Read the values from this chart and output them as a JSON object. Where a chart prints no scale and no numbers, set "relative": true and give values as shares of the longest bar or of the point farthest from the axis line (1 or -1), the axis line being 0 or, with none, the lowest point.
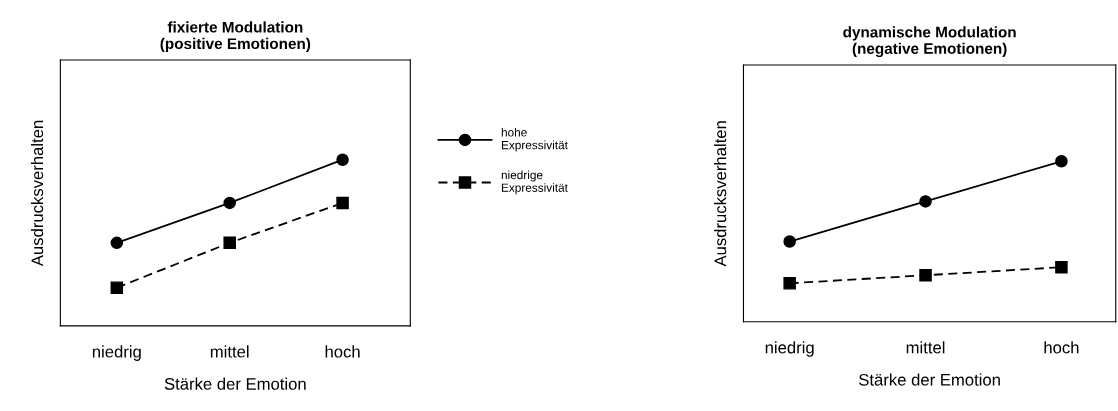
{
  "chart_data": [
    {
      "type": "line",
      "title": "fixierte Modulation\n(positive Emotionen)",
      "xlabel": "Stärke der Emotion",
      "ylabel": "Ausdrucksverhalten",
      "relative": true,
      "categories": [
        "niedrig",
        "mittel",
        "hoch"
      ],
      "legend": "right",
      "grid": false,
      "series": [
        {
          "name": "hohe\nExpressivität",
          "color": "#000000",
          "values": [
            0.5,
            0.74,
            1
          ],
          "marker": "circle",
          "line_style": "solid"
        },
        {
          "name": "niedrige\nExpressivität",
          "color": "#000000",
          "values": [
            0.23,
            0.5,
            0.74
          ],
          "marker": "square",
          "line_style": "dashed"
        }
      ]
    },
    {
      "type": "line",
      "title": "dynamische Modulation\n(negative Emotionen)",
      "xlabel": "Stärke der Emotion",
      "ylabel": "Ausdrucksverhalten",
      "relative": true,
      "categories": [
        "niedrig",
        "mittel",
        "hoch"
      ],
      "grid": false,
      "series": [
        {
          "color": "#000000",
          "values": [
            0.5,
            0.75,
            1
          ],
          "marker": "circle",
          "line_style": "solid"
        },
        {
          "color": "#000000",
          "values": [
            0.24,
            0.29,
            0.34
          ],
          "marker": "square",
          "line_style": "dashed"
        }
      ]
    }
  ]
}
